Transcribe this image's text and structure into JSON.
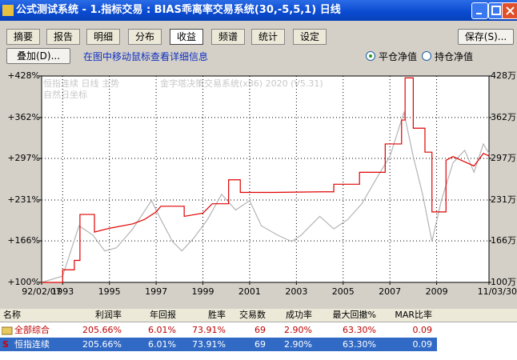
{
  "window": {
    "title": "公式测试系统 - 1.指标交易 : BIAS乖离率交易系统(30,-5,5,1) 日线"
  },
  "tabs": [
    "摘要",
    "报告",
    "明细",
    "分布",
    "收益",
    "频谱",
    "统计",
    "设定"
  ],
  "save_button": "保存(S)...",
  "overlay_button": "叠加(D)...",
  "hint": "在图中移动鼠标查看详细信息",
  "radios": [
    "平仓净值",
    "持仓净值"
  ],
  "watermarks": [
    "恒指连续 日线 主势",
    "金字塔决策交易系统(x86) 2020 (V5.31)",
    "自然日坐标"
  ],
  "chart_data": {
    "type": "line",
    "xlim": [
      1992.1,
      2011.24
    ],
    "xticks": [
      {
        "value": 1992.1,
        "label": "92/02/07"
      },
      1993,
      1995,
      1997,
      1999,
      2001,
      2003,
      2005,
      2007,
      2009,
      {
        "value": 2011.24,
        "label": "11/03/30"
      }
    ],
    "ylim": [
      100,
      428
    ],
    "yticks": [
      {
        "value": 100,
        "label": "+100%"
      },
      {
        "value": 166,
        "label": "+166%"
      },
      {
        "value": 231,
        "label": "+231%"
      },
      {
        "value": 297,
        "label": "+297%"
      },
      {
        "value": 362,
        "label": "+362%"
      },
      {
        "value": 428,
        "label": "+428%"
      }
    ],
    "y2lim": [
      100,
      428
    ],
    "y2ticks": [
      {
        "value": 100,
        "label": "100万"
      },
      {
        "value": 166,
        "label": "166万"
      },
      {
        "value": 231,
        "label": "231万"
      },
      {
        "value": 297,
        "label": "297万"
      },
      {
        "value": 362,
        "label": "362万"
      },
      {
        "value": 428,
        "label": "428万"
      }
    ],
    "grid": true,
    "series": [
      {
        "color": "#b4b4b4",
        "x": [
          1992.1,
          1993,
          1993.7,
          1994.3,
          1994.8,
          1995.3,
          1996,
          1996.8,
          1997.2,
          1997.7,
          1998.1,
          1998.6,
          1999.2,
          1999.8,
          2000.4,
          2001,
          2001.5,
          2002.2,
          2002.8,
          2003.2,
          2004,
          2004.6,
          2005.2,
          2005.8,
          2006.5,
          2007,
          2007.6,
          2008,
          2008.4,
          2008.8,
          2009.2,
          2009.7,
          2010.2,
          2010.6,
          2011,
          2011.24
        ],
        "values": [
          100,
          110,
          190,
          175,
          150,
          155,
          185,
          230,
          200,
          165,
          150,
          170,
          200,
          240,
          215,
          230,
          190,
          175,
          165,
          175,
          205,
          185,
          200,
          225,
          270,
          300,
          370,
          300,
          240,
          165,
          230,
          290,
          310,
          275,
          320,
          305
        ]
      },
      {
        "color": "#e00000",
        "x": [
          1992.1,
          1993.0,
          1993.0,
          1993.5,
          1993.5,
          1993.74,
          1993.74,
          1994.36,
          1994.36,
          1995.0,
          1996.0,
          1996.5,
          1997.0,
          1997.2,
          1998.2,
          1998.2,
          1999.0,
          1999.4,
          2000.1,
          2000.1,
          2000.6,
          2000.6,
          2002.0,
          2004.1,
          2004.6,
          2004.6,
          2005.7,
          2005.7,
          2006.8,
          2006.8,
          2007.5,
          2007.5,
          2007.65,
          2007.65,
          2008.0,
          2008.0,
          2008.5,
          2008.5,
          2008.8,
          2008.8,
          2009.4,
          2009.4,
          2009.7,
          2010.3,
          2010.6,
          2011.0,
          2011.24
        ],
        "values": [
          100,
          100,
          120,
          120,
          135,
          135,
          208,
          208,
          180,
          186,
          193,
          200,
          212,
          221,
          221,
          205,
          210,
          225,
          225,
          263,
          263,
          243,
          243,
          244,
          244,
          256,
          256,
          275,
          275,
          320,
          320,
          358,
          358,
          425,
          425,
          345,
          345,
          307,
          307,
          212,
          212,
          294,
          300,
          290,
          285,
          305,
          301
        ]
      }
    ]
  },
  "table": {
    "header": [
      "名称",
      "利润率",
      "年回报",
      "胜率",
      "交易数",
      "成功率",
      "最大回撤%",
      "MAR比率"
    ],
    "rows": [
      [
        "全部综合",
        "205.66%",
        "6.01%",
        "73.91%",
        "69",
        "2.90%",
        "63.30%",
        "0.09"
      ],
      [
        "恒指连续",
        "205.66%",
        "6.01%",
        "73.91%",
        "69",
        "2.90%",
        "63.30%",
        "0.09"
      ]
    ],
    "row_icon": "S"
  }
}
